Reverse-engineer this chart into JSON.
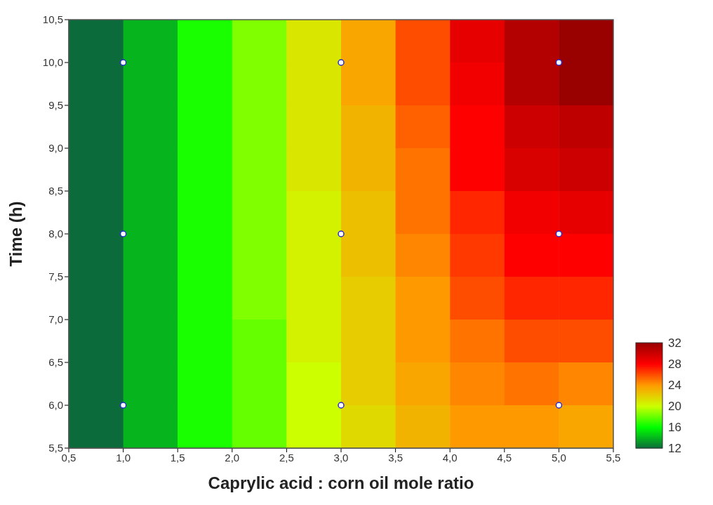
{
  "chart_data": {
    "type": "heatmap",
    "xlabel": "Caprylic acid : corn oil mole ratio",
    "ylabel": "Time (h)",
    "x": [
      0.75,
      1.25,
      1.75,
      2.25,
      2.75,
      3.25,
      3.75,
      4.25,
      4.75,
      5.25
    ],
    "y": [
      10.25,
      9.75,
      9.25,
      8.75,
      8.25,
      7.75,
      7.25,
      6.75,
      6.25,
      5.75
    ],
    "cells": [
      [
        12,
        14,
        16.5,
        18.5,
        21,
        23.5,
        26,
        29,
        31,
        32
      ],
      [
        12,
        14,
        16.5,
        18.5,
        21,
        23.5,
        26,
        28.5,
        31,
        32
      ],
      [
        12,
        14,
        16.5,
        18.5,
        21,
        23,
        25.5,
        28,
        30,
        30.5
      ],
      [
        12,
        14,
        16.5,
        18.5,
        21,
        23,
        25,
        28,
        29.5,
        30
      ],
      [
        12,
        14,
        16.5,
        18.5,
        20.5,
        22.5,
        25,
        27,
        28.5,
        29
      ],
      [
        12,
        14,
        16.5,
        18.5,
        20.5,
        22.5,
        24.5,
        26.5,
        28,
        28
      ],
      [
        12,
        14,
        16.5,
        18.5,
        20.5,
        22,
        24,
        26,
        27,
        27
      ],
      [
        12,
        14,
        16.5,
        18,
        20.5,
        22,
        24,
        25,
        26,
        26
      ],
      [
        12,
        14,
        16.5,
        18,
        20,
        22,
        23.5,
        24.5,
        25,
        24.5
      ],
      [
        12,
        14,
        16.5,
        18,
        20,
        21.5,
        23,
        24,
        24,
        23.5
      ]
    ],
    "clim": [
      12,
      32
    ],
    "cticks": [
      32,
      28,
      24,
      20,
      16,
      12
    ],
    "series": [
      {
        "type": "scatter",
        "x": [
          1,
          1,
          1,
          3,
          3,
          3,
          5,
          5,
          5
        ],
        "values": [
          6,
          8,
          10,
          6,
          8,
          10,
          6,
          8,
          10
        ],
        "color": "#ffffff",
        "marker": "circle"
      }
    ],
    "xlim": [
      0.5,
      5.5
    ],
    "ylim": [
      5.5,
      10.5
    ],
    "xticks": [
      {
        "value": 0.5,
        "label": "0,5"
      },
      {
        "value": 1,
        "label": "1,0"
      },
      {
        "value": 1.5,
        "label": "1,5"
      },
      {
        "value": 2,
        "label": "2,0"
      },
      {
        "value": 2.5,
        "label": "2,5"
      },
      {
        "value": 3,
        "label": "3,0"
      },
      {
        "value": 3.5,
        "label": "3,5"
      },
      {
        "value": 4,
        "label": "4,0"
      },
      {
        "value": 4.5,
        "label": "4,5"
      },
      {
        "value": 5,
        "label": "5,0"
      },
      {
        "value": 5.5,
        "label": "5,5"
      }
    ],
    "yticks": [
      {
        "value": 5.5,
        "label": "5,5"
      },
      {
        "value": 6,
        "label": "6,0"
      },
      {
        "value": 6.5,
        "label": "6,5"
      },
      {
        "value": 7,
        "label": "7,0"
      },
      {
        "value": 7.5,
        "label": "7,5"
      },
      {
        "value": 8,
        "label": "8,0"
      },
      {
        "value": 8.5,
        "label": "8,5"
      },
      {
        "value": 9,
        "label": "9,0"
      },
      {
        "value": 9.5,
        "label": "9,5"
      },
      {
        "value": 10,
        "label": "10,0"
      },
      {
        "value": 10.5,
        "label": "10,5"
      }
    ]
  }
}
